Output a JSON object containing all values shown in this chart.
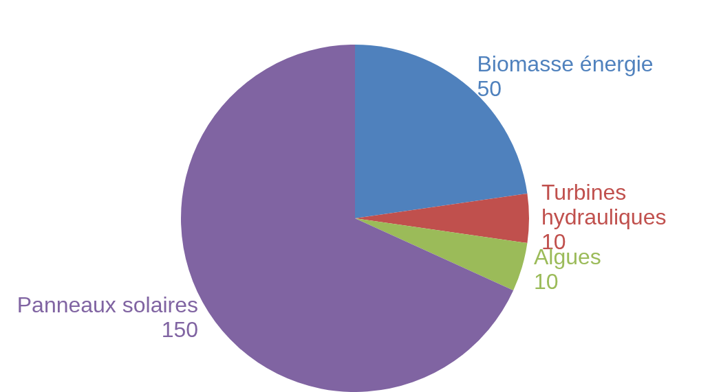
{
  "chart_data": {
    "type": "pie",
    "categories": [
      "Biomasse énergie",
      "Turbines hydrauliques",
      "Algues",
      "Panneaux solaires"
    ],
    "values": [
      50,
      10,
      10,
      150
    ],
    "colors": [
      "#4f81bd",
      "#c0504d",
      "#9bbb59",
      "#8064a2"
    ],
    "data_labels": true,
    "legend": false
  }
}
